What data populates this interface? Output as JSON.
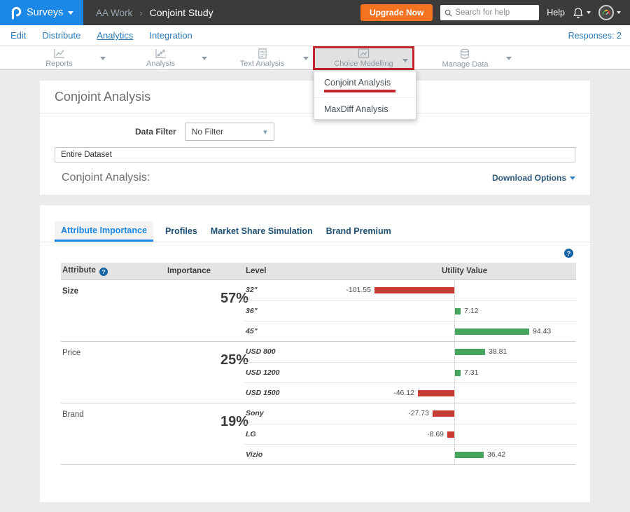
{
  "topbar": {
    "brand": "Surveys",
    "breadcrumb": {
      "parent": "AA Work",
      "separator": "›",
      "current": "Conjoint Study"
    },
    "upgrade_label": "Upgrade Now",
    "search_placeholder": "Search for help",
    "help_label": "Help"
  },
  "nav": {
    "items": [
      {
        "label": "Edit",
        "active": false
      },
      {
        "label": "Distribute",
        "active": false
      },
      {
        "label": "Analytics",
        "active": true
      },
      {
        "label": "Integration",
        "active": false
      }
    ],
    "responses_label": "Responses: 2"
  },
  "toolbar": {
    "items": [
      {
        "label": "Reports",
        "icon": "line-chart-icon",
        "highlighted": false
      },
      {
        "label": "Analysis",
        "icon": "scatter-chart-icon",
        "highlighted": false
      },
      {
        "label": "Text Analysis",
        "icon": "text-document-icon",
        "highlighted": false
      },
      {
        "label": "Choice Modelling",
        "icon": "choice-chart-icon",
        "highlighted": true
      },
      {
        "label": "Manage Data",
        "icon": "database-icon",
        "highlighted": false
      }
    ]
  },
  "dropdown": {
    "items": [
      {
        "label": "Conjoint Analysis",
        "annotated": true
      },
      {
        "label": "MaxDiff Analysis",
        "annotated": false
      }
    ]
  },
  "page": {
    "title": "Conjoint Analysis",
    "data_filter_label": "Data Filter",
    "data_filter_value": "No Filter",
    "dataset_label": "Entire Dataset",
    "section_title": "Conjoint Analysis:",
    "download_options_label": "Download Options"
  },
  "tabs": {
    "items": [
      {
        "label": "Attribute Importance",
        "active": true
      },
      {
        "label": "Profiles",
        "active": false
      },
      {
        "label": "Market Share Simulation",
        "active": false
      },
      {
        "label": "Brand Premium",
        "active": false
      }
    ]
  },
  "table": {
    "headers": {
      "attribute": "Attribute",
      "importance": "Importance",
      "level": "Level",
      "utility_value": "Utility Value"
    }
  },
  "chart_data": {
    "type": "bar",
    "orientation": "horizontal",
    "value_axis": "utility value, zero-centered",
    "positive_color": "#47a45f",
    "negative_color": "#c93a32",
    "pixels_per_unit": 1.12,
    "groups": [
      {
        "attribute": "Size",
        "importance": "57%",
        "emphasis": true,
        "levels": [
          {
            "label": "32\"",
            "value": -101.55
          },
          {
            "label": "36\"",
            "value": 7.12
          },
          {
            "label": "45\"",
            "value": 94.43
          }
        ]
      },
      {
        "attribute": "Price",
        "importance": "25%",
        "emphasis": false,
        "levels": [
          {
            "label": "USD 800",
            "value": 38.81
          },
          {
            "label": "USD 1200",
            "value": 7.31
          },
          {
            "label": "USD 1500",
            "value": -46.12
          }
        ]
      },
      {
        "attribute": "Brand",
        "importance": "19%",
        "emphasis": false,
        "levels": [
          {
            "label": "Sony",
            "value": -27.73
          },
          {
            "label": "LG",
            "value": -8.69
          },
          {
            "label": "Vizio",
            "value": 36.42
          }
        ]
      }
    ]
  },
  "icons": {
    "logo": "question-mark-P shape",
    "search": "magnifier",
    "bell": "notification bell outline",
    "avatar": "circular gauge avatar",
    "question_help": "white ? on blue circle",
    "carets": "triangle down"
  },
  "colors": {
    "topbar_bg": "#3b3b3a",
    "brand_blue": "#1b87e6",
    "upgrade_orange": "#f47321",
    "annotation_red": "#c4262e",
    "link_blue": "#2b7bb9",
    "tab_navy": "#1d4f72",
    "positive_bar": "#47a45f",
    "negative_bar": "#c93a32"
  }
}
